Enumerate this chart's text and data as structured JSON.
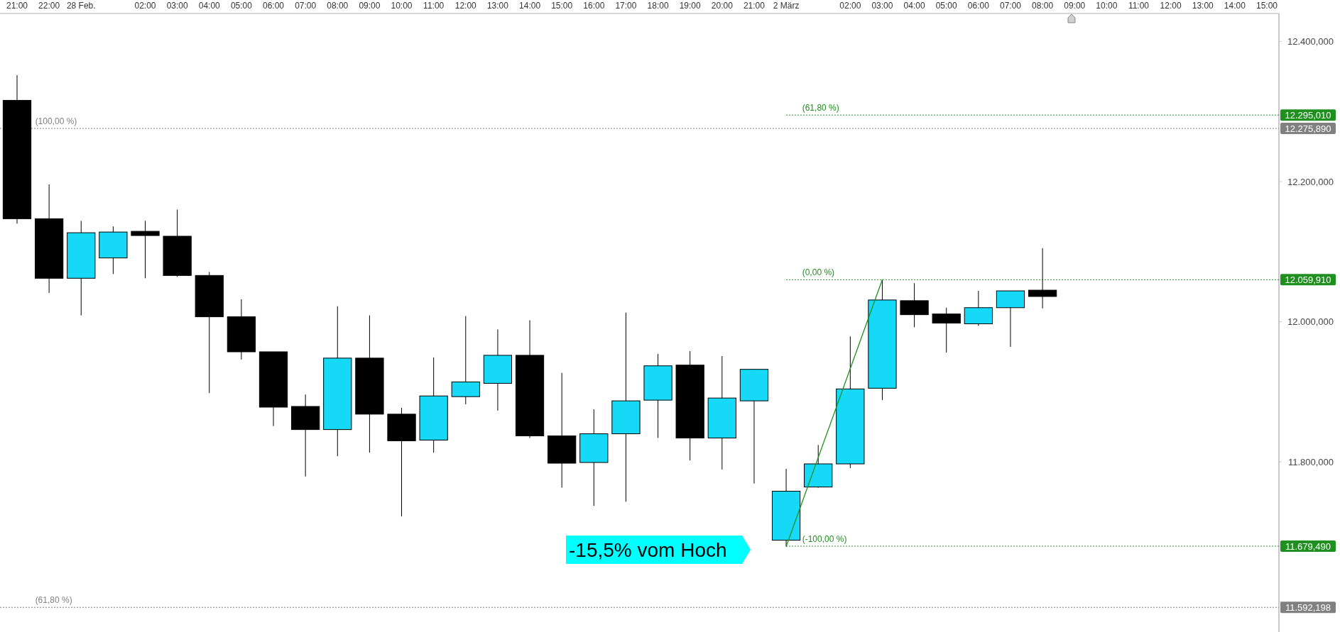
{
  "chart_data": {
    "type": "candlestick",
    "categories": [
      "21:00",
      "22:00",
      "28 Feb.",
      null,
      "02:00",
      "03:00",
      "04:00",
      "05:00",
      "06:00",
      "07:00",
      "08:00",
      "09:00",
      "10:00",
      "11:00",
      "12:00",
      "13:00",
      "14:00",
      "15:00",
      "16:00",
      "17:00",
      "18:00",
      "19:00",
      "20:00",
      "21:00",
      "2 März",
      null,
      "02:00",
      "03:00",
      "04:00",
      "05:00",
      "06:00",
      "07:00",
      "08:00",
      "09:00",
      "10:00",
      "11:00",
      "12:00",
      "13:00",
      "14:00",
      "15:00"
    ],
    "ohlc": [
      [
        12316,
        12352,
        12140,
        12147
      ],
      [
        12147,
        12196,
        12041,
        12062
      ],
      [
        12062,
        12144,
        12009,
        12127
      ],
      [
        12091,
        12136,
        12068,
        12128
      ],
      [
        12129,
        12144,
        12062,
        12123
      ],
      [
        12122,
        12160,
        12064,
        12066
      ],
      [
        12066,
        12071,
        11898,
        12007
      ],
      [
        12007,
        12032,
        11946,
        11957
      ],
      [
        11957,
        11957,
        11851,
        11878
      ],
      [
        11879,
        11896,
        11779,
        11846
      ],
      [
        11846,
        12022,
        11808,
        11948
      ],
      [
        11948,
        12009,
        11813,
        11868
      ],
      [
        11868,
        11877,
        11722,
        11830
      ],
      [
        11831,
        11949,
        11813,
        11894
      ],
      [
        11893,
        12008,
        11882,
        11914
      ],
      [
        11912,
        11989,
        11873,
        11952
      ],
      [
        11952,
        12002,
        11834,
        11837
      ],
      [
        11837,
        11927,
        11763,
        11798
      ],
      [
        11799,
        11875,
        11737,
        11840
      ],
      [
        11840,
        12013,
        11743,
        11887
      ],
      [
        11888,
        11954,
        11834,
        11937
      ],
      [
        11938,
        11958,
        11802,
        11834
      ],
      [
        11834,
        11951,
        11789,
        11891
      ],
      [
        11887,
        11932,
        11769,
        11932
      ],
      [
        11688,
        11790,
        11679,
        11758
      ],
      [
        11764,
        11824,
        11763,
        11797
      ],
      [
        11797,
        11979,
        11791,
        11904
      ],
      [
        11905,
        12060,
        11888,
        12031
      ],
      [
        12030,
        12055,
        11992,
        12010
      ],
      [
        12011,
        12020,
        11956,
        11998
      ],
      [
        11997,
        12044,
        11994,
        12020
      ],
      [
        12020,
        12044,
        11964,
        12044
      ],
      [
        12045,
        12105,
        12019,
        12036
      ],
      null,
      null,
      null,
      null,
      null,
      null,
      null
    ],
    "colors": [
      "#000000",
      "#000000",
      "#16d9f7",
      "#16d9f7",
      "#000000",
      "#000000",
      "#000000",
      "#000000",
      "#000000",
      "#000000",
      "#16d9f7",
      "#000000",
      "#000000",
      "#16d9f7",
      "#16d9f7",
      "#16d9f7",
      "#000000",
      "#000000",
      "#16d9f7",
      "#16d9f7",
      "#16d9f7",
      "#000000",
      "#16d9f7",
      "#16d9f7",
      "#16d9f7",
      "#16d9f7",
      "#16d9f7",
      "#16d9f7",
      "#000000",
      "#000000",
      "#16d9f7",
      "#16d9f7",
      "#000000",
      null,
      null,
      null,
      null,
      null,
      null,
      null
    ],
    "series": [
      {
        "type": "line",
        "color": "#1f8f1f",
        "values": [
          null,
          null,
          null,
          null,
          null,
          null,
          null,
          null,
          null,
          null,
          null,
          null,
          null,
          null,
          null,
          null,
          null,
          null,
          null,
          null,
          null,
          null,
          null,
          null,
          11679,
          null,
          null,
          12060,
          null,
          null,
          null,
          null,
          null,
          null,
          null,
          null,
          null,
          null,
          null,
          null
        ]
      }
    ],
    "ylim": [
      11557,
      12440
    ],
    "yticks": [
      {
        "value": 12400,
        "label": "12.400,000"
      },
      {
        "value": 12200,
        "label": "12.200,000"
      },
      {
        "value": 12000,
        "label": "12.000,000"
      },
      {
        "value": 11800,
        "label": "11.800,000"
      },
      {
        "value": 11600,
        "label": null
      }
    ],
    "ref_lines": [
      {
        "axis": "y",
        "value": 12295.01,
        "label": "12.295,010",
        "color": "#1f8f1f",
        "line_style": "dotted"
      },
      {
        "axis": "y",
        "value": 12275.89,
        "label": "12.275,890",
        "color": "#808080",
        "line_style": "dotted"
      },
      {
        "axis": "y",
        "value": 12059.91,
        "label": "12.059,910",
        "color": "#1f8f1f",
        "line_style": "dotted"
      },
      {
        "axis": "y",
        "value": 11679.49,
        "label": "11.679,490",
        "color": "#1f8f1f",
        "line_style": "dotted"
      },
      {
        "axis": "y",
        "value": 11592.198,
        "label": "11.592,198",
        "color": "#808080",
        "line_style": "dotted"
      }
    ],
    "annotations": [
      "-15,5% vom Hoch",
      {
        "text": "(61,80 %)",
        "x": "2 März",
        "y": 12295.01
      },
      {
        "text": "(100,00 %)",
        "y": 12275.89
      },
      {
        "text": "(0,00 %)",
        "x": "2 März",
        "y": 12059.91
      },
      {
        "text": "(-100,00 %)",
        "x": "2 März",
        "y": 11679.49
      },
      {
        "text": "(61,80 %)",
        "y": 11592.198
      }
    ],
    "grid": false
  }
}
